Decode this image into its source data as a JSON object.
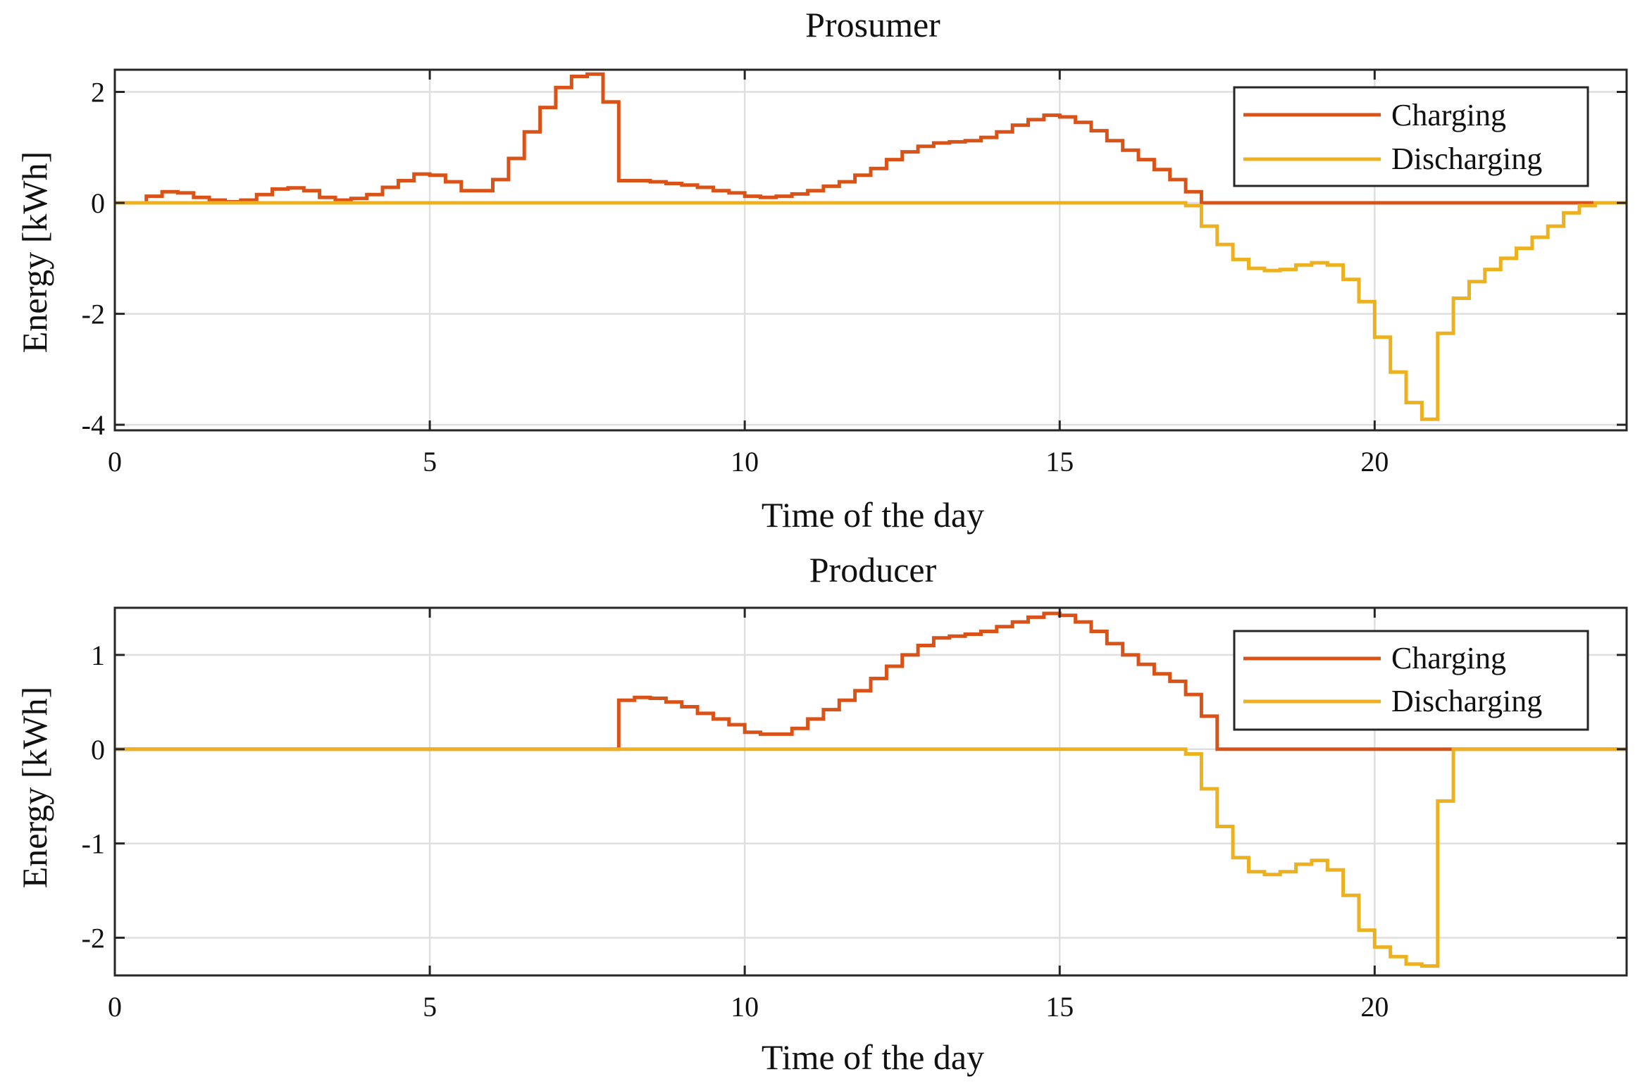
{
  "chart_data": [
    {
      "type": "line",
      "step": true,
      "title": "Prosumer",
      "xlabel": "Time of the day",
      "ylabel": "Energy [kWh]",
      "xlim": [
        0,
        24
      ],
      "ylim": [
        -4.1,
        2.4
      ],
      "xticks": [
        0,
        5,
        10,
        15,
        20
      ],
      "yticks": [
        2,
        0,
        -2,
        -4
      ],
      "grid": true,
      "legend_position": "top-right",
      "colors": {
        "Charging": "#d95319",
        "Discharging": "#edb120"
      },
      "x": [
        0.0,
        0.25,
        0.5,
        0.75,
        1.0,
        1.25,
        1.5,
        1.75,
        2.0,
        2.25,
        2.5,
        2.75,
        3.0,
        3.25,
        3.5,
        3.75,
        4.0,
        4.25,
        4.5,
        4.75,
        5.0,
        5.25,
        5.5,
        5.75,
        6.0,
        6.25,
        6.5,
        6.75,
        7.0,
        7.25,
        7.5,
        7.75,
        8.0,
        8.25,
        8.5,
        8.75,
        9.0,
        9.25,
        9.5,
        9.75,
        10.0,
        10.25,
        10.5,
        10.75,
        11.0,
        11.25,
        11.5,
        11.75,
        12.0,
        12.25,
        12.5,
        12.75,
        13.0,
        13.25,
        13.5,
        13.75,
        14.0,
        14.25,
        14.5,
        14.75,
        15.0,
        15.25,
        15.5,
        15.75,
        16.0,
        16.25,
        16.5,
        16.75,
        17.0,
        17.25,
        17.5,
        17.75,
        18.0,
        18.25,
        18.5,
        18.75,
        19.0,
        19.25,
        19.5,
        19.75,
        20.0,
        20.25,
        20.5,
        20.75,
        21.0,
        21.25,
        21.5,
        21.75,
        22.0,
        22.25,
        22.5,
        22.75,
        23.0,
        23.25,
        23.5,
        23.75
      ],
      "series": [
        {
          "name": "Charging",
          "values": [
            0,
            0,
            0.12,
            0.2,
            0.18,
            0.1,
            0.05,
            0.02,
            0.05,
            0.15,
            0.25,
            0.27,
            0.22,
            0.1,
            0.05,
            0.08,
            0.15,
            0.28,
            0.4,
            0.52,
            0.5,
            0.38,
            0.22,
            0.22,
            0.42,
            0.8,
            1.28,
            1.72,
            2.08,
            2.28,
            2.32,
            1.82,
            0.4,
            0.4,
            0.38,
            0.35,
            0.32,
            0.28,
            0.22,
            0.18,
            0.12,
            0.1,
            0.12,
            0.16,
            0.22,
            0.3,
            0.38,
            0.5,
            0.62,
            0.78,
            0.92,
            1.02,
            1.08,
            1.1,
            1.12,
            1.18,
            1.28,
            1.4,
            1.5,
            1.58,
            1.55,
            1.45,
            1.3,
            1.12,
            0.95,
            0.78,
            0.6,
            0.42,
            0.2,
            0,
            0,
            0,
            0,
            0,
            0,
            0,
            0,
            0,
            0,
            0,
            0,
            0,
            0,
            0,
            0,
            0,
            0,
            0,
            0,
            0,
            0,
            0,
            0,
            0,
            0,
            0
          ]
        },
        {
          "name": "Discharging",
          "values": [
            0,
            0,
            0,
            0,
            0,
            0,
            0,
            0,
            0,
            0,
            0,
            0,
            0,
            0,
            0,
            0,
            0,
            0,
            0,
            0,
            0,
            0,
            0,
            0,
            0,
            0,
            0,
            0,
            0,
            0,
            0,
            0,
            0,
            0,
            0,
            0,
            0,
            0,
            0,
            0,
            0,
            0,
            0,
            0,
            0,
            0,
            0,
            0,
            0,
            0,
            0,
            0,
            0,
            0,
            0,
            0,
            0,
            0,
            0,
            0,
            0,
            0,
            0,
            0,
            0,
            0,
            0,
            0,
            -0.05,
            -0.42,
            -0.75,
            -1.02,
            -1.18,
            -1.22,
            -1.2,
            -1.12,
            -1.08,
            -1.12,
            -1.38,
            -1.78,
            -2.42,
            -3.05,
            -3.6,
            -3.9,
            -2.35,
            -1.72,
            -1.42,
            -1.2,
            -1.0,
            -0.82,
            -0.62,
            -0.42,
            -0.18,
            -0.05,
            0,
            0
          ]
        }
      ]
    },
    {
      "type": "line",
      "step": true,
      "title": "Producer",
      "xlabel": "Time of the day",
      "ylabel": "Energy [kWh]",
      "xlim": [
        0,
        24
      ],
      "ylim": [
        -2.4,
        1.5
      ],
      "xticks": [
        0,
        5,
        10,
        15,
        20
      ],
      "yticks": [
        1,
        0,
        -1,
        -2
      ],
      "grid": true,
      "legend_position": "top-right",
      "colors": {
        "Charging": "#d95319",
        "Discharging": "#edb120"
      },
      "x": [
        0.0,
        0.25,
        0.5,
        0.75,
        1.0,
        1.25,
        1.5,
        1.75,
        2.0,
        2.25,
        2.5,
        2.75,
        3.0,
        3.25,
        3.5,
        3.75,
        4.0,
        4.25,
        4.5,
        4.75,
        5.0,
        5.25,
        5.5,
        5.75,
        6.0,
        6.25,
        6.5,
        6.75,
        7.0,
        7.25,
        7.5,
        7.75,
        8.0,
        8.25,
        8.5,
        8.75,
        9.0,
        9.25,
        9.5,
        9.75,
        10.0,
        10.25,
        10.5,
        10.75,
        11.0,
        11.25,
        11.5,
        11.75,
        12.0,
        12.25,
        12.5,
        12.75,
        13.0,
        13.25,
        13.5,
        13.75,
        14.0,
        14.25,
        14.5,
        14.75,
        15.0,
        15.25,
        15.5,
        15.75,
        16.0,
        16.25,
        16.5,
        16.75,
        17.0,
        17.25,
        17.5,
        17.75,
        18.0,
        18.25,
        18.5,
        18.75,
        19.0,
        19.25,
        19.5,
        19.75,
        20.0,
        20.25,
        20.5,
        20.75,
        21.0,
        21.25,
        21.5,
        21.75,
        22.0,
        22.25,
        22.5,
        22.75,
        23.0,
        23.25,
        23.5,
        23.75
      ],
      "series": [
        {
          "name": "Charging",
          "values": [
            0,
            0,
            0,
            0,
            0,
            0,
            0,
            0,
            0,
            0,
            0,
            0,
            0,
            0,
            0,
            0,
            0,
            0,
            0,
            0,
            0,
            0,
            0,
            0,
            0,
            0,
            0,
            0,
            0,
            0,
            0,
            0,
            0.52,
            0.55,
            0.54,
            0.5,
            0.45,
            0.38,
            0.32,
            0.26,
            0.18,
            0.16,
            0.16,
            0.22,
            0.32,
            0.42,
            0.52,
            0.62,
            0.75,
            0.88,
            1.0,
            1.1,
            1.18,
            1.2,
            1.22,
            1.25,
            1.3,
            1.35,
            1.4,
            1.44,
            1.42,
            1.35,
            1.25,
            1.12,
            1.0,
            0.9,
            0.8,
            0.72,
            0.58,
            0.35,
            0,
            0,
            0,
            0,
            0,
            0,
            0,
            0,
            0,
            0,
            0,
            0,
            0,
            0,
            0,
            0,
            0,
            0,
            0,
            0,
            0,
            0,
            0,
            0,
            0,
            0
          ]
        },
        {
          "name": "Discharging",
          "values": [
            0,
            0,
            0,
            0,
            0,
            0,
            0,
            0,
            0,
            0,
            0,
            0,
            0,
            0,
            0,
            0,
            0,
            0,
            0,
            0,
            0,
            0,
            0,
            0,
            0,
            0,
            0,
            0,
            0,
            0,
            0,
            0,
            0,
            0,
            0,
            0,
            0,
            0,
            0,
            0,
            0,
            0,
            0,
            0,
            0,
            0,
            0,
            0,
            0,
            0,
            0,
            0,
            0,
            0,
            0,
            0,
            0,
            0,
            0,
            0,
            0,
            0,
            0,
            0,
            0,
            0,
            0,
            0,
            -0.05,
            -0.42,
            -0.82,
            -1.15,
            -1.3,
            -1.33,
            -1.3,
            -1.22,
            -1.18,
            -1.28,
            -1.55,
            -1.92,
            -2.1,
            -2.2,
            -2.28,
            -2.3,
            -0.55,
            0,
            0,
            0,
            0,
            0,
            0,
            0,
            0,
            0,
            0,
            0
          ]
        }
      ]
    }
  ]
}
